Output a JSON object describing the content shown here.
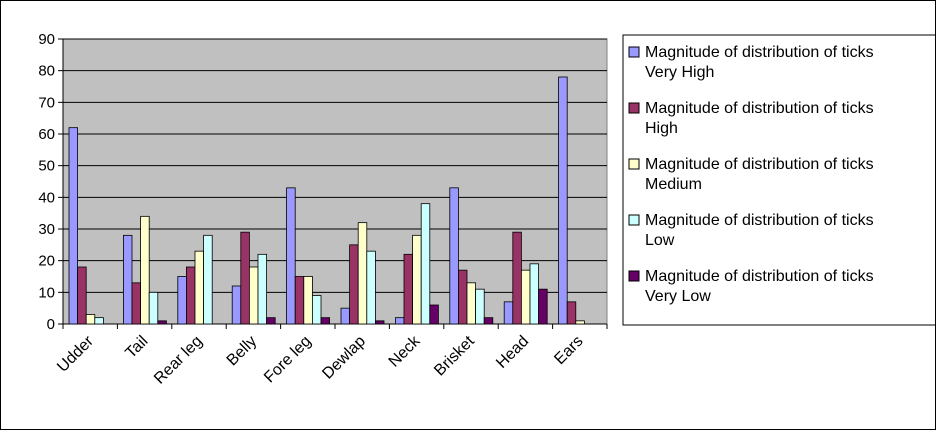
{
  "chart_data": {
    "type": "bar",
    "categories": [
      "Udder",
      "Tail",
      "Rear leg",
      "Belly",
      "Fore leg",
      "Dewlap",
      "Neck",
      "Brisket",
      "Head",
      "Ears"
    ],
    "series": [
      {
        "name_line1": "Magnitude of distribution of ticks",
        "name_line2": "Very High",
        "color": "#9999ff",
        "values": [
          62,
          28,
          15,
          12,
          43,
          5,
          2,
          43,
          7,
          78
        ]
      },
      {
        "name_line1": "Magnitude of distribution of ticks",
        "name_line2": "High",
        "color": "#993366",
        "values": [
          18,
          13,
          18,
          29,
          15,
          25,
          22,
          17,
          29,
          7
        ]
      },
      {
        "name_line1": "Magnitude of distribution of ticks",
        "name_line2": "Medium",
        "color": "#ffffcc",
        "values": [
          3,
          34,
          23,
          18,
          15,
          32,
          28,
          13,
          17,
          1
        ]
      },
      {
        "name_line1": "Magnitude of distribution of ticks",
        "name_line2": "Low",
        "color": "#ccffff",
        "values": [
          2,
          10,
          28,
          22,
          9,
          23,
          38,
          11,
          19,
          0
        ]
      },
      {
        "name_line1": "Magnitude of distribution of ticks",
        "name_line2": "Very Low",
        "color": "#660066",
        "values": [
          0,
          1,
          0,
          2,
          2,
          1,
          6,
          2,
          11,
          0
        ]
      }
    ],
    "y_ticks": [
      "0",
      "10",
      "20",
      "30",
      "40",
      "50",
      "60",
      "70",
      "80",
      "90"
    ],
    "ylim": [
      0,
      90
    ],
    "grid": true,
    "legend_position": "right",
    "plot_background": "#c0c0c0"
  }
}
